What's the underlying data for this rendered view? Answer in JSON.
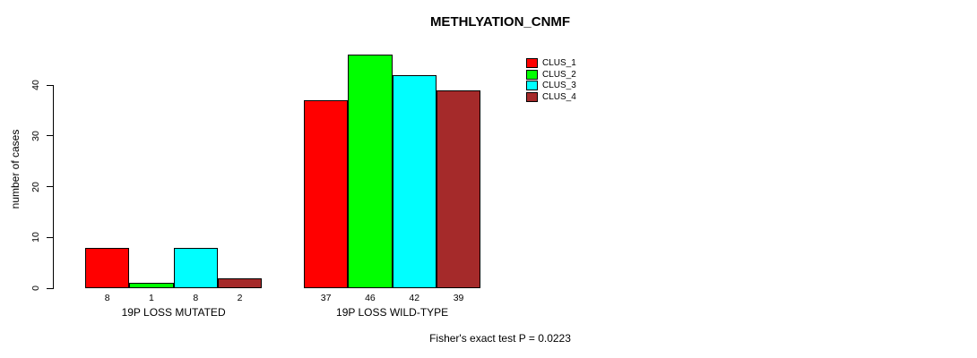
{
  "title": "METHLYATION_CNMF",
  "chart_data": {
    "type": "bar",
    "title": "METHLYATION_CNMF",
    "ylabel": "number of cases",
    "xlabel": "",
    "ylim": [
      0,
      46
    ],
    "yticks": [
      0,
      10,
      20,
      30,
      40
    ],
    "grid": false,
    "legend_position": "top-right",
    "background": "#ffffff",
    "bar_border_color": "#000000",
    "categories": [
      "19P LOSS MUTATED",
      "19P LOSS WILD-TYPE"
    ],
    "series": [
      {
        "name": "CLUS_1",
        "color": "#ff0000",
        "values": [
          8,
          37
        ]
      },
      {
        "name": "CLUS_2",
        "color": "#00ff00",
        "values": [
          1,
          46
        ]
      },
      {
        "name": "CLUS_3",
        "color": "#00ffff",
        "values": [
          8,
          42
        ]
      },
      {
        "name": "CLUS_4",
        "color": "#a52a2a",
        "values": [
          2,
          39
        ]
      }
    ],
    "bar_value_labels": {
      "19P LOSS MUTATED": [
        8,
        1,
        8,
        2
      ],
      "19P LOSS WILD-TYPE": [
        37,
        46,
        42,
        39
      ]
    },
    "annotation": "Fisher's exact test P = 0.0223"
  }
}
